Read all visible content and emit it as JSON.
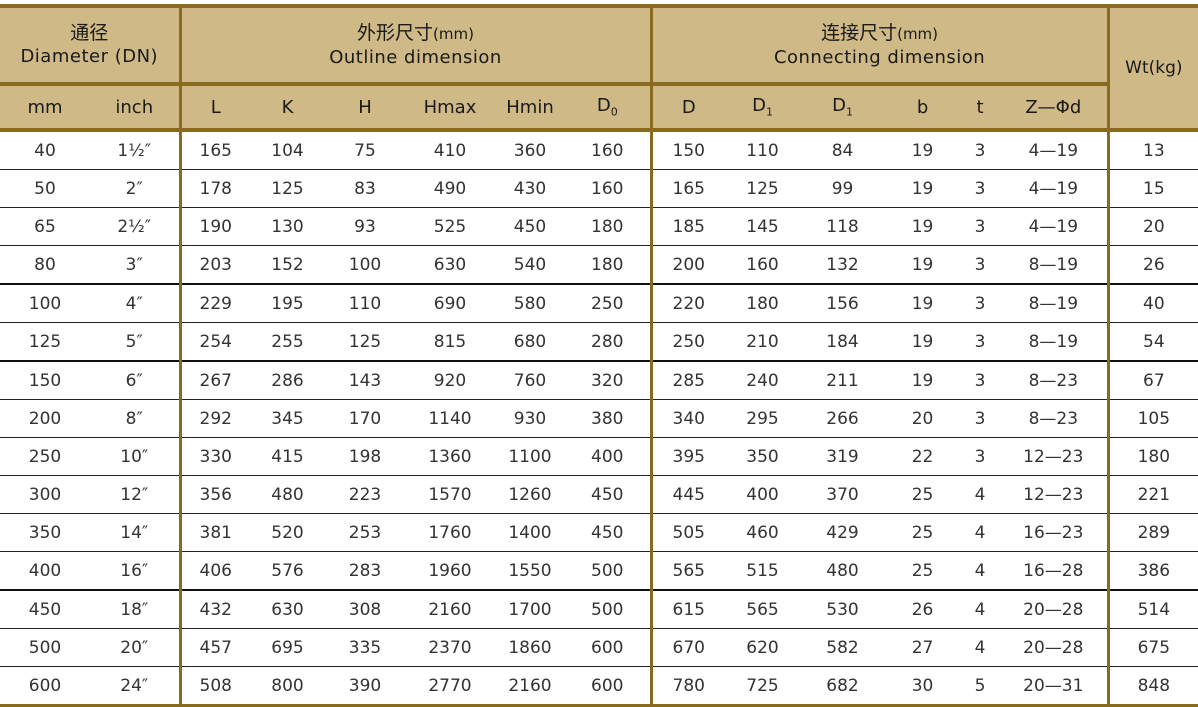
{
  "header": {
    "diameter_cn": "通径",
    "diameter_en": "Diameter (DN)",
    "outline_cn": "外形尺寸",
    "outline_unit": "(mm)",
    "outline_en": "Outline dimension",
    "connecting_cn": "连接尺寸",
    "connecting_unit": "(mm)",
    "connecting_en": "Connecting dimension",
    "weight": "Wt(kg)",
    "columns": [
      "mm",
      "inch",
      "L",
      "K",
      "H",
      "Hmax",
      "Hmin",
      "D0",
      "D",
      "D1",
      "D1",
      "b",
      "t",
      "Z—Φd"
    ]
  },
  "rows": [
    [
      "40",
      "1½″",
      "165",
      "104",
      "75",
      "410",
      "360",
      "160",
      "150",
      "110",
      "84",
      "19",
      "3",
      "4—19",
      "13"
    ],
    [
      "50",
      "2″",
      "178",
      "125",
      "83",
      "490",
      "430",
      "160",
      "165",
      "125",
      "99",
      "19",
      "3",
      "4—19",
      "15"
    ],
    [
      "65",
      "2½″",
      "190",
      "130",
      "93",
      "525",
      "450",
      "180",
      "185",
      "145",
      "118",
      "19",
      "3",
      "4—19",
      "20"
    ],
    [
      "80",
      "3″",
      "203",
      "152",
      "100",
      "630",
      "540",
      "180",
      "200",
      "160",
      "132",
      "19",
      "3",
      "8—19",
      "26"
    ],
    [
      "100",
      "4″",
      "229",
      "195",
      "110",
      "690",
      "580",
      "250",
      "220",
      "180",
      "156",
      "19",
      "3",
      "8—19",
      "40"
    ],
    [
      "125",
      "5″",
      "254",
      "255",
      "125",
      "815",
      "680",
      "280",
      "250",
      "210",
      "184",
      "19",
      "3",
      "8—19",
      "54"
    ],
    [
      "150",
      "6″",
      "267",
      "286",
      "143",
      "920",
      "760",
      "320",
      "285",
      "240",
      "211",
      "19",
      "3",
      "8—23",
      "67"
    ],
    [
      "200",
      "8″",
      "292",
      "345",
      "170",
      "1140",
      "930",
      "380",
      "340",
      "295",
      "266",
      "20",
      "3",
      "8—23",
      "105"
    ],
    [
      "250",
      "10″",
      "330",
      "415",
      "198",
      "1360",
      "1100",
      "400",
      "395",
      "350",
      "319",
      "22",
      "3",
      "12—23",
      "180"
    ],
    [
      "300",
      "12″",
      "356",
      "480",
      "223",
      "1570",
      "1260",
      "450",
      "445",
      "400",
      "370",
      "25",
      "4",
      "12—23",
      "221"
    ],
    [
      "350",
      "14″",
      "381",
      "520",
      "253",
      "1760",
      "1400",
      "450",
      "505",
      "460",
      "429",
      "25",
      "4",
      "16—23",
      "289"
    ],
    [
      "400",
      "16″",
      "406",
      "576",
      "283",
      "1960",
      "1550",
      "500",
      "565",
      "515",
      "480",
      "25",
      "4",
      "16—28",
      "386"
    ],
    [
      "450",
      "18″",
      "432",
      "630",
      "308",
      "2160",
      "1700",
      "500",
      "615",
      "565",
      "530",
      "26",
      "4",
      "20—28",
      "514"
    ],
    [
      "500",
      "20″",
      "457",
      "695",
      "335",
      "2370",
      "1860",
      "600",
      "670",
      "620",
      "582",
      "27",
      "4",
      "20—28",
      "675"
    ],
    [
      "600",
      "24″",
      "508",
      "800",
      "390",
      "2770",
      "2160",
      "600",
      "780",
      "725",
      "682",
      "30",
      "5",
      "20—31",
      "848"
    ]
  ],
  "colors": {
    "header_bg": "#ceb987",
    "border": "#8a6a1e"
  }
}
